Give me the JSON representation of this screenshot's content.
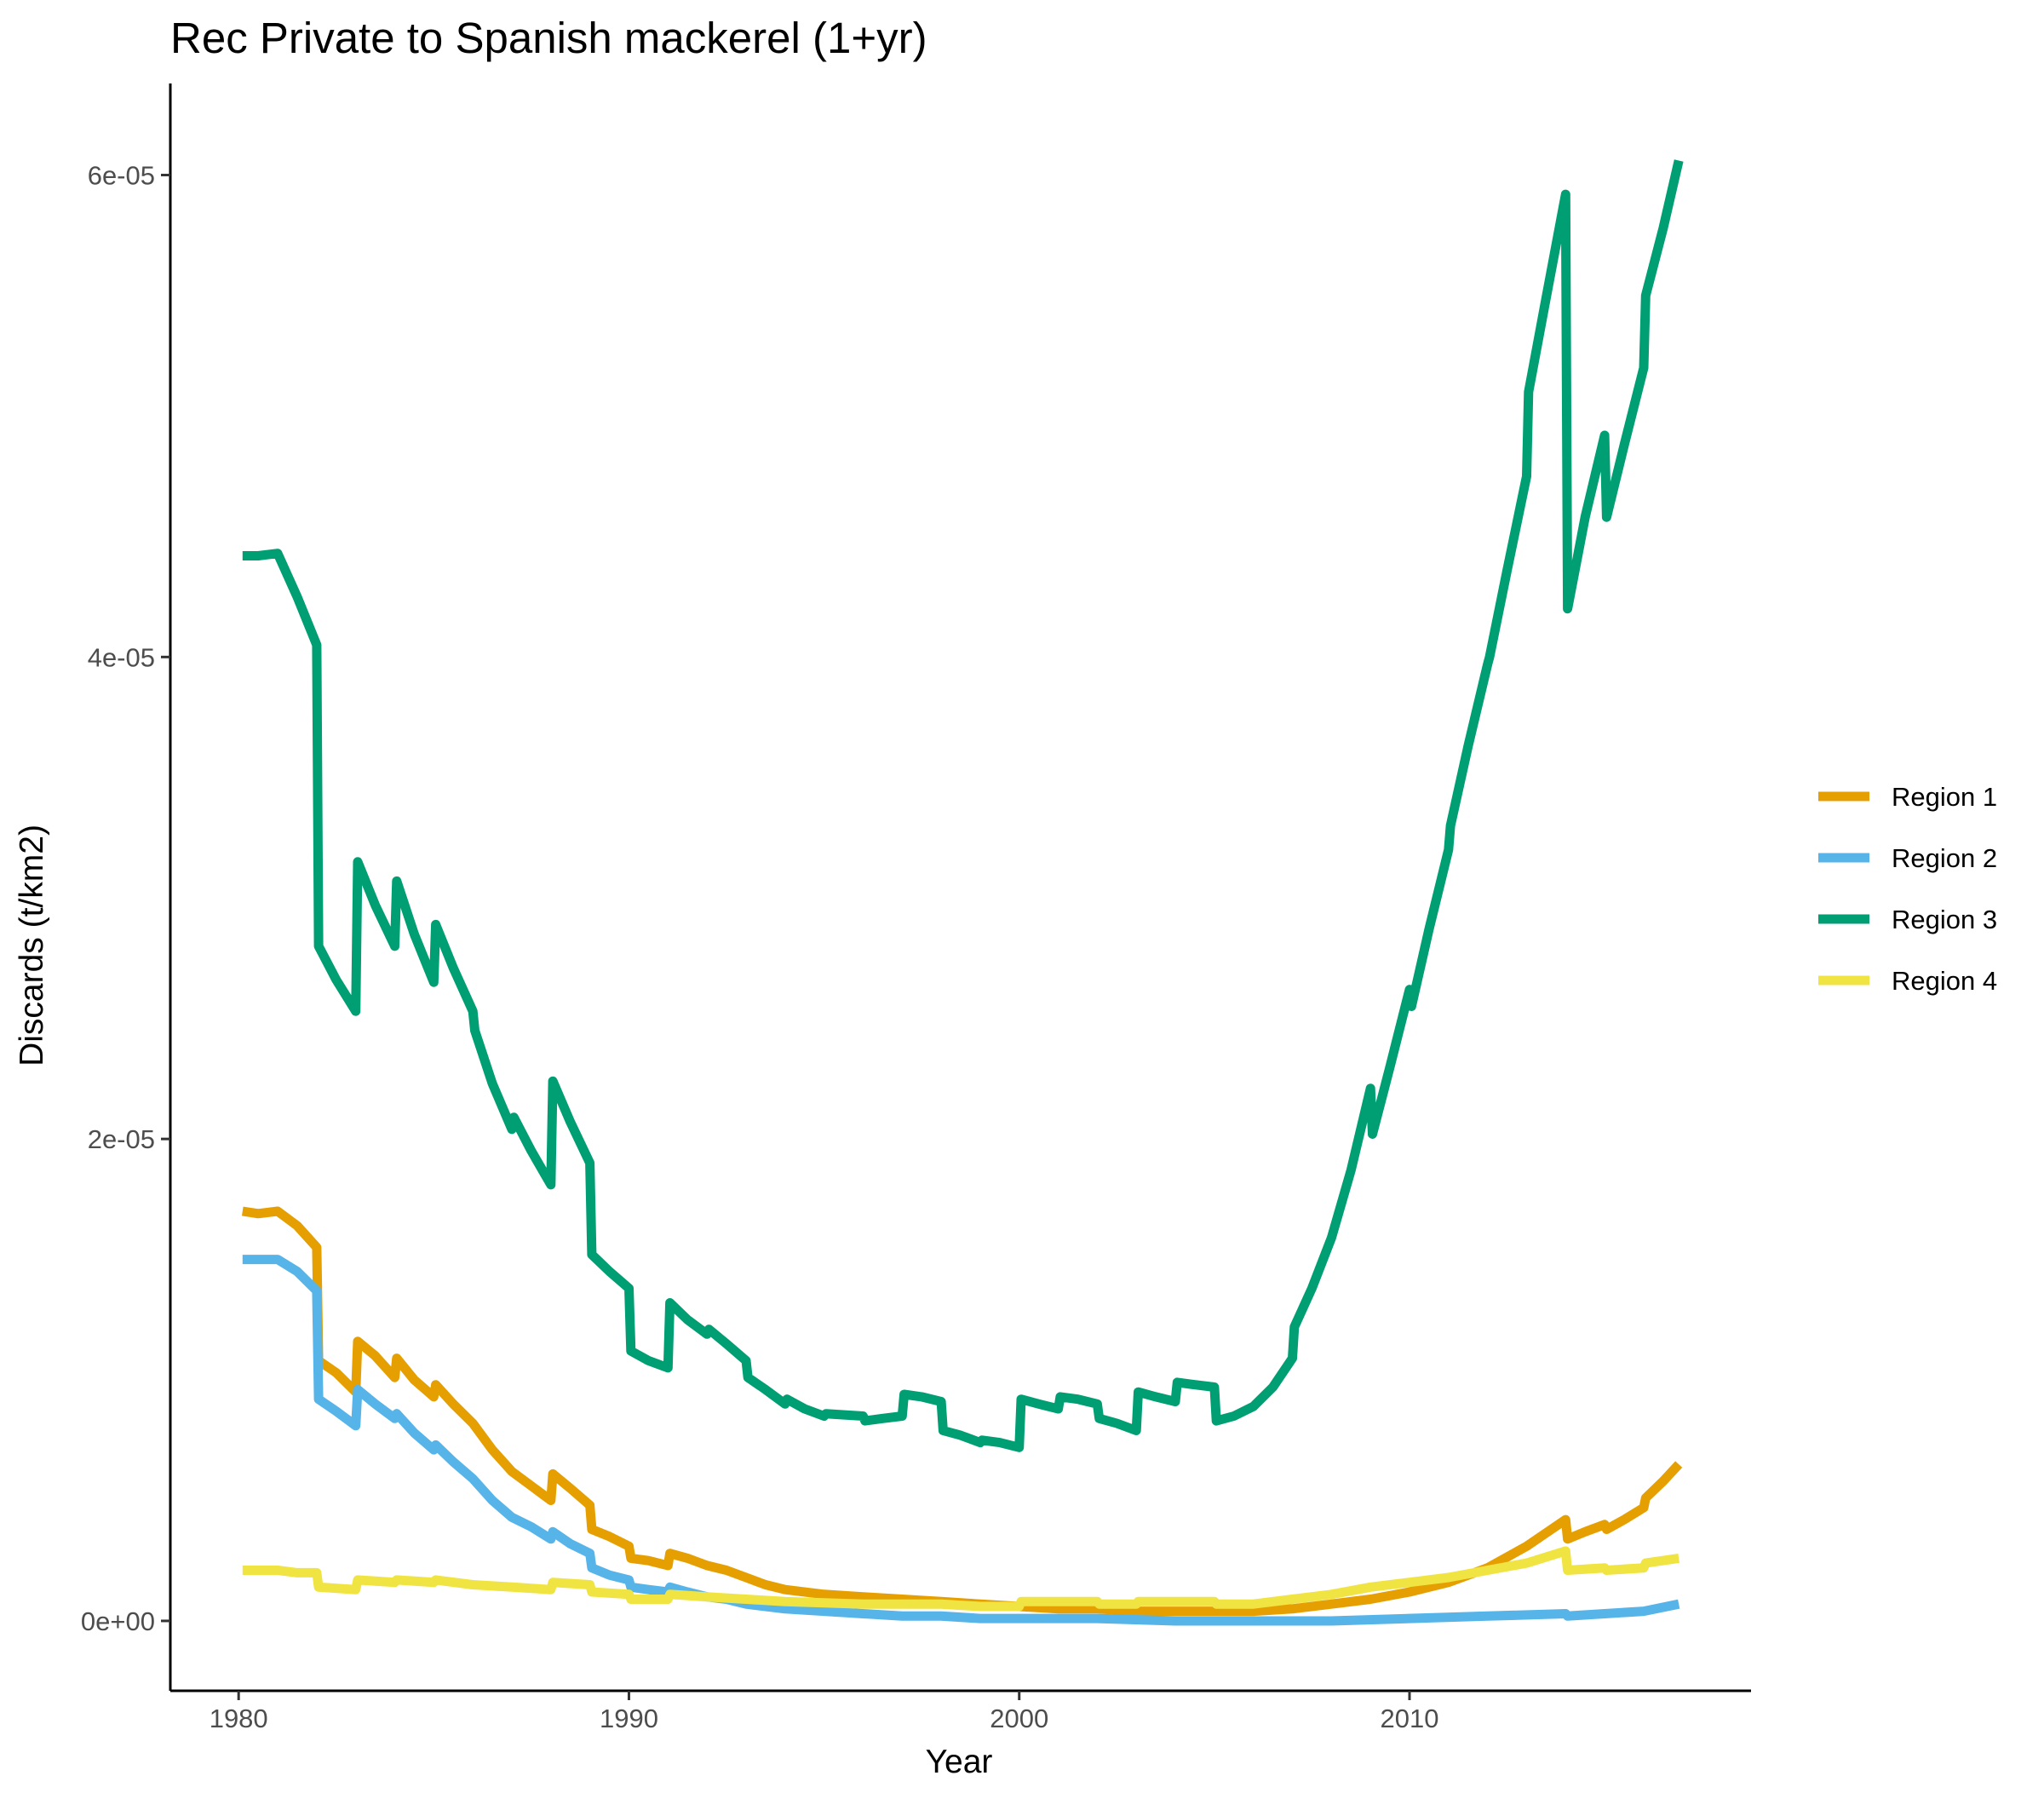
{
  "chart_data": {
    "type": "line",
    "title": "Rec Private to Spanish mackerel (1+yr)",
    "xlabel": "Year",
    "ylabel": "Discards (t/km2)",
    "xlim": [
      1978.25,
      2018.75
    ],
    "ylim": [
      -2.9e-06,
      6.38e-05
    ],
    "x_ticks": [
      {
        "value": 1980,
        "label": "1980"
      },
      {
        "value": 1990,
        "label": "1990"
      },
      {
        "value": 2000,
        "label": "2000"
      },
      {
        "value": 2010,
        "label": "2010"
      }
    ],
    "y_ticks": [
      {
        "value": 0,
        "label": "0e+00"
      },
      {
        "value": 2e-05,
        "label": "2e-05"
      },
      {
        "value": 4e-05,
        "label": "4e-05"
      },
      {
        "value": 6e-05,
        "label": "6e-05"
      }
    ],
    "grid": false,
    "legend_position": "right",
    "series": [
      {
        "name": "Region 1",
        "color": "#E69F00",
        "points": [
          [
            1980.1,
            1.7e-05
          ],
          [
            1980.5,
            1.69e-05
          ],
          [
            1981.0,
            1.7e-05
          ],
          [
            1981.5,
            1.64e-05
          ],
          [
            1982.0,
            1.55e-05
          ],
          [
            1982.05,
            1.08e-05
          ],
          [
            1982.5,
            1.03e-05
          ],
          [
            1983.0,
            9.5e-06
          ],
          [
            1983.05,
            1.16e-05
          ],
          [
            1983.5,
            1.1e-05
          ],
          [
            1984.0,
            1.01e-05
          ],
          [
            1984.05,
            1.09e-05
          ],
          [
            1984.5,
            1e-05
          ],
          [
            1985.0,
            9.3e-06
          ],
          [
            1985.05,
            9.8e-06
          ],
          [
            1985.5,
            9e-06
          ],
          [
            1986.0,
            8.2e-06
          ],
          [
            1986.5,
            7.1e-06
          ],
          [
            1987.0,
            6.2e-06
          ],
          [
            1987.5,
            5.6e-06
          ],
          [
            1988.0,
            5e-06
          ],
          [
            1988.05,
            6.1e-06
          ],
          [
            1988.5,
            5.5e-06
          ],
          [
            1989.0,
            4.8e-06
          ],
          [
            1989.05,
            3.8e-06
          ],
          [
            1989.5,
            3.5e-06
          ],
          [
            1990.0,
            3.1e-06
          ],
          [
            1990.05,
            2.6e-06
          ],
          [
            1990.5,
            2.5e-06
          ],
          [
            1991.0,
            2.3e-06
          ],
          [
            1991.05,
            2.8e-06
          ],
          [
            1991.5,
            2.6e-06
          ],
          [
            1992.0,
            2.3e-06
          ],
          [
            1992.5,
            2.1e-06
          ],
          [
            1993.0,
            1.8e-06
          ],
          [
            1993.5,
            1.5e-06
          ],
          [
            1994.0,
            1.3e-06
          ],
          [
            1995.0,
            1.1e-06
          ],
          [
            1996.0,
            1e-06
          ],
          [
            1997.0,
            9e-07
          ],
          [
            1998.0,
            8e-07
          ],
          [
            1999.0,
            7e-07
          ],
          [
            2000.0,
            6e-07
          ],
          [
            2001.0,
            5e-07
          ],
          [
            2002.0,
            5e-07
          ],
          [
            2003.0,
            4e-07
          ],
          [
            2004.0,
            4e-07
          ],
          [
            2005.0,
            4e-07
          ],
          [
            2006.0,
            4e-07
          ],
          [
            2007.0,
            5e-07
          ],
          [
            2008.0,
            7e-07
          ],
          [
            2009.0,
            9e-07
          ],
          [
            2010.0,
            1.2e-06
          ],
          [
            2011.0,
            1.6e-06
          ],
          [
            2012.0,
            2.2e-06
          ],
          [
            2013.0,
            3.1e-06
          ],
          [
            2014.0,
            4.2e-06
          ],
          [
            2014.05,
            3.4e-06
          ],
          [
            2014.5,
            3.7e-06
          ],
          [
            2015.0,
            4e-06
          ],
          [
            2015.05,
            3.8e-06
          ],
          [
            2015.5,
            4.2e-06
          ],
          [
            2016.0,
            4.7e-06
          ],
          [
            2016.05,
            5.1e-06
          ],
          [
            2016.5,
            5.8e-06
          ],
          [
            2016.9,
            6.5e-06
          ]
        ]
      },
      {
        "name": "Region 2",
        "color": "#56B4E9",
        "points": [
          [
            1980.1,
            1.5e-05
          ],
          [
            1980.5,
            1.5e-05
          ],
          [
            1981.0,
            1.5e-05
          ],
          [
            1981.5,
            1.45e-05
          ],
          [
            1982.0,
            1.37e-05
          ],
          [
            1982.05,
            9.2e-06
          ],
          [
            1982.5,
            8.7e-06
          ],
          [
            1983.0,
            8.1e-06
          ],
          [
            1983.05,
            9.6e-06
          ],
          [
            1983.5,
            9e-06
          ],
          [
            1984.0,
            8.4e-06
          ],
          [
            1984.05,
            8.6e-06
          ],
          [
            1984.5,
            7.8e-06
          ],
          [
            1985.0,
            7.1e-06
          ],
          [
            1985.05,
            7.3e-06
          ],
          [
            1985.5,
            6.6e-06
          ],
          [
            1986.0,
            5.9e-06
          ],
          [
            1986.5,
            5e-06
          ],
          [
            1987.0,
            4.3e-06
          ],
          [
            1987.5,
            3.9e-06
          ],
          [
            1988.0,
            3.4e-06
          ],
          [
            1988.05,
            3.7e-06
          ],
          [
            1988.5,
            3.2e-06
          ],
          [
            1989.0,
            2.8e-06
          ],
          [
            1989.05,
            2.2e-06
          ],
          [
            1989.5,
            1.9e-06
          ],
          [
            1990.0,
            1.7e-06
          ],
          [
            1990.05,
            1.4e-06
          ],
          [
            1990.5,
            1.3e-06
          ],
          [
            1991.0,
            1.2e-06
          ],
          [
            1991.05,
            1.4e-06
          ],
          [
            1991.5,
            1.2e-06
          ],
          [
            1992.0,
            1e-06
          ],
          [
            1992.5,
            9e-07
          ],
          [
            1993.0,
            7e-07
          ],
          [
            1994.0,
            5e-07
          ],
          [
            1995.0,
            4e-07
          ],
          [
            1996.0,
            3e-07
          ],
          [
            1997.0,
            2e-07
          ],
          [
            1998.0,
            2e-07
          ],
          [
            1999.0,
            1e-07
          ],
          [
            2000.0,
            1e-07
          ],
          [
            2002.0,
            1e-07
          ],
          [
            2004.0,
            0.0
          ],
          [
            2006.0,
            0.0
          ],
          [
            2008.0,
            0.0
          ],
          [
            2010.0,
            1e-07
          ],
          [
            2012.0,
            2e-07
          ],
          [
            2014.0,
            3e-07
          ],
          [
            2014.05,
            2e-07
          ],
          [
            2015.0,
            3e-07
          ],
          [
            2016.0,
            4e-07
          ],
          [
            2016.9,
            7e-07
          ]
        ]
      },
      {
        "name": "Region 3",
        "color": "#009E73",
        "points": [
          [
            1980.1,
            4.42e-05
          ],
          [
            1980.5,
            4.42e-05
          ],
          [
            1981.0,
            4.43e-05
          ],
          [
            1981.5,
            4.25e-05
          ],
          [
            1982.0,
            4.05e-05
          ],
          [
            1982.05,
            2.8e-05
          ],
          [
            1982.5,
            2.66e-05
          ],
          [
            1983.0,
            2.53e-05
          ],
          [
            1983.05,
            3.15e-05
          ],
          [
            1983.5,
            2.97e-05
          ],
          [
            1984.0,
            2.8e-05
          ],
          [
            1984.05,
            3.07e-05
          ],
          [
            1984.5,
            2.85e-05
          ],
          [
            1985.0,
            2.65e-05
          ],
          [
            1985.05,
            2.89e-05
          ],
          [
            1985.5,
            2.71e-05
          ],
          [
            1986.0,
            2.53e-05
          ],
          [
            1986.05,
            2.45e-05
          ],
          [
            1986.5,
            2.23e-05
          ],
          [
            1987.0,
            2.04e-05
          ],
          [
            1987.05,
            2.09e-05
          ],
          [
            1987.5,
            1.95e-05
          ],
          [
            1988.0,
            1.81e-05
          ],
          [
            1988.05,
            2.24e-05
          ],
          [
            1988.5,
            2.07e-05
          ],
          [
            1989.0,
            1.9e-05
          ],
          [
            1989.05,
            1.52e-05
          ],
          [
            1989.5,
            1.45e-05
          ],
          [
            1990.0,
            1.38e-05
          ],
          [
            1990.05,
            1.12e-05
          ],
          [
            1990.5,
            1.08e-05
          ],
          [
            1991.0,
            1.05e-05
          ],
          [
            1991.05,
            1.32e-05
          ],
          [
            1991.5,
            1.25e-05
          ],
          [
            1992.0,
            1.19e-05
          ],
          [
            1992.05,
            1.21e-05
          ],
          [
            1992.5,
            1.15e-05
          ],
          [
            1993.0,
            1.08e-05
          ],
          [
            1993.05,
            1.01e-05
          ],
          [
            1993.5,
            9.6e-06
          ],
          [
            1994.0,
            9e-06
          ],
          [
            1994.05,
            9.2e-06
          ],
          [
            1994.5,
            8.8e-06
          ],
          [
            1995.0,
            8.5e-06
          ],
          [
            1995.05,
            8.6e-06
          ],
          [
            1996.0,
            8.5e-06
          ],
          [
            1996.05,
            8.3e-06
          ],
          [
            1996.5,
            8.4e-06
          ],
          [
            1997.0,
            8.5e-06
          ],
          [
            1997.05,
            9.4e-06
          ],
          [
            1997.5,
            9.3e-06
          ],
          [
            1998.0,
            9.1e-06
          ],
          [
            1998.05,
            7.9e-06
          ],
          [
            1998.5,
            7.7e-06
          ],
          [
            1999.0,
            7.4e-06
          ],
          [
            1999.05,
            7.5e-06
          ],
          [
            1999.5,
            7.4e-06
          ],
          [
            2000.0,
            7.2e-06
          ],
          [
            2000.05,
            9.2e-06
          ],
          [
            2000.5,
            9e-06
          ],
          [
            2001.0,
            8.8e-06
          ],
          [
            2001.05,
            9.3e-06
          ],
          [
            2001.5,
            9.2e-06
          ],
          [
            2002.0,
            9e-06
          ],
          [
            2002.05,
            8.4e-06
          ],
          [
            2002.5,
            8.2e-06
          ],
          [
            2003.0,
            7.9e-06
          ],
          [
            2003.05,
            9.5e-06
          ],
          [
            2003.5,
            9.3e-06
          ],
          [
            2004.0,
            9.1e-06
          ],
          [
            2004.05,
            9.9e-06
          ],
          [
            2004.5,
            9.8e-06
          ],
          [
            2005.0,
            9.7e-06
          ],
          [
            2005.05,
            8.3e-06
          ],
          [
            2005.5,
            8.5e-06
          ],
          [
            2006.0,
            8.9e-06
          ],
          [
            2006.5,
            9.7e-06
          ],
          [
            2007.0,
            1.09e-05
          ],
          [
            2007.05,
            1.22e-05
          ],
          [
            2007.5,
            1.38e-05
          ],
          [
            2008.0,
            1.59e-05
          ],
          [
            2008.5,
            1.87e-05
          ],
          [
            2009.0,
            2.21e-05
          ],
          [
            2009.05,
            2.02e-05
          ],
          [
            2009.5,
            2.3e-05
          ],
          [
            2010.0,
            2.62e-05
          ],
          [
            2010.05,
            2.55e-05
          ],
          [
            2010.5,
            2.87e-05
          ],
          [
            2011.0,
            3.2e-05
          ],
          [
            2011.05,
            3.3e-05
          ],
          [
            2011.5,
            3.63e-05
          ],
          [
            2012.0,
            3.97e-05
          ],
          [
            2012.05,
            4e-05
          ],
          [
            2012.5,
            4.36e-05
          ],
          [
            2013.0,
            4.75e-05
          ],
          [
            2013.05,
            5.1e-05
          ],
          [
            2013.5,
            5.49e-05
          ],
          [
            2014.0,
            5.92e-05
          ],
          [
            2014.05,
            4.2e-05
          ],
          [
            2014.5,
            4.58e-05
          ],
          [
            2015.0,
            4.92e-05
          ],
          [
            2015.05,
            4.58e-05
          ],
          [
            2015.5,
            4.88e-05
          ],
          [
            2016.0,
            5.2e-05
          ],
          [
            2016.05,
            5.5e-05
          ],
          [
            2016.5,
            5.78e-05
          ],
          [
            2016.9,
            6.06e-05
          ]
        ]
      },
      {
        "name": "Region 4",
        "color": "#F0E442",
        "points": [
          [
            1980.1,
            2.1e-06
          ],
          [
            1980.5,
            2.1e-06
          ],
          [
            1981.0,
            2.1e-06
          ],
          [
            1981.5,
            2e-06
          ],
          [
            1982.0,
            2e-06
          ],
          [
            1982.05,
            1.4e-06
          ],
          [
            1983.0,
            1.3e-06
          ],
          [
            1983.05,
            1.7e-06
          ],
          [
            1984.0,
            1.6e-06
          ],
          [
            1984.05,
            1.7e-06
          ],
          [
            1985.0,
            1.6e-06
          ],
          [
            1985.05,
            1.7e-06
          ],
          [
            1986.0,
            1.5e-06
          ],
          [
            1987.0,
            1.4e-06
          ],
          [
            1988.0,
            1.3e-06
          ],
          [
            1988.05,
            1.6e-06
          ],
          [
            1989.0,
            1.5e-06
          ],
          [
            1989.05,
            1.2e-06
          ],
          [
            1990.0,
            1.1e-06
          ],
          [
            1990.05,
            9e-07
          ],
          [
            1991.0,
            9e-07
          ],
          [
            1991.05,
            1.1e-06
          ],
          [
            1992.0,
            1e-06
          ],
          [
            1993.0,
            9e-07
          ],
          [
            1994.0,
            8e-07
          ],
          [
            1996.0,
            7e-07
          ],
          [
            1998.0,
            7e-07
          ],
          [
            1999.0,
            6e-07
          ],
          [
            2000.0,
            6e-07
          ],
          [
            2000.05,
            8e-07
          ],
          [
            2002.0,
            8e-07
          ],
          [
            2002.05,
            7e-07
          ],
          [
            2003.0,
            7e-07
          ],
          [
            2003.05,
            8e-07
          ],
          [
            2005.0,
            8e-07
          ],
          [
            2005.05,
            7e-07
          ],
          [
            2006.0,
            7e-07
          ],
          [
            2007.0,
            9e-07
          ],
          [
            2008.0,
            1.1e-06
          ],
          [
            2009.0,
            1.4e-06
          ],
          [
            2010.0,
            1.6e-06
          ],
          [
            2011.0,
            1.8e-06
          ],
          [
            2012.0,
            2.1e-06
          ],
          [
            2013.0,
            2.4e-06
          ],
          [
            2014.0,
            2.9e-06
          ],
          [
            2014.05,
            2.1e-06
          ],
          [
            2015.0,
            2.2e-06
          ],
          [
            2015.05,
            2.1e-06
          ],
          [
            2016.0,
            2.2e-06
          ],
          [
            2016.05,
            2.4e-06
          ],
          [
            2016.9,
            2.6e-06
          ]
        ]
      }
    ]
  }
}
